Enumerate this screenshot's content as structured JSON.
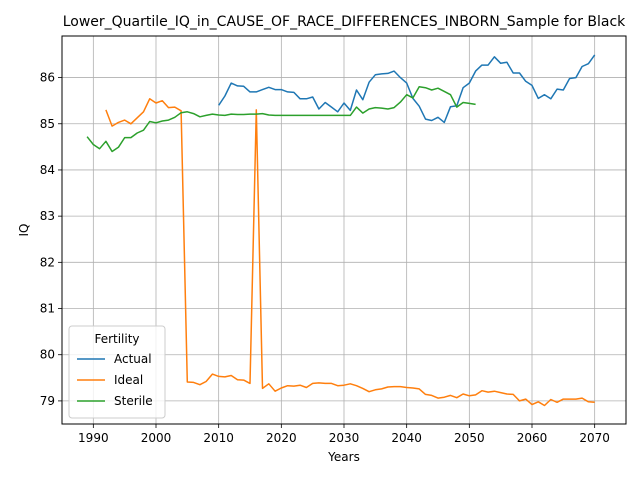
{
  "chart_data": {
    "type": "line",
    "title": "Lower_Quartile_IQ_in_CAUSE_OF_RACE_DIFFERENCES_INBORN_Sample for Black",
    "xlabel": "Years",
    "ylabel": "IQ",
    "xlim": [
      1985,
      2075
    ],
    "ylim": [
      78.5,
      86.9
    ],
    "xticks": [
      1990,
      2000,
      2010,
      2020,
      2030,
      2040,
      2050,
      2060,
      2070
    ],
    "yticks": [
      79,
      80,
      81,
      82,
      83,
      84,
      85,
      86
    ],
    "grid": true,
    "legend": {
      "title": "Fertility",
      "placement": "lower-left"
    },
    "series": [
      {
        "name": "Actual",
        "color": "#1f77b4",
        "x": [
          2010,
          2011,
          2012,
          2013,
          2014,
          2015,
          2016,
          2017,
          2018,
          2019,
          2020,
          2021,
          2022,
          2023,
          2024,
          2025,
          2026,
          2027,
          2028,
          2029,
          2030,
          2031,
          2032,
          2033,
          2034,
          2035,
          2036,
          2037,
          2038,
          2039,
          2040,
          2041,
          2042,
          2043,
          2044,
          2045,
          2046,
          2047,
          2048,
          2049,
          2050,
          2051,
          2052,
          2053,
          2054,
          2055,
          2056,
          2057,
          2058,
          2059,
          2060,
          2061,
          2062,
          2063,
          2064,
          2065,
          2066,
          2067,
          2068,
          2069,
          2070
        ],
        "y": [
          85.4,
          85.6,
          85.88,
          85.82,
          85.81,
          85.69,
          85.69,
          85.74,
          85.79,
          85.74,
          85.74,
          85.69,
          85.68,
          85.54,
          85.54,
          85.58,
          85.32,
          85.46,
          85.36,
          85.26,
          85.45,
          85.29,
          85.73,
          85.52,
          85.9,
          86.06,
          86.08,
          86.09,
          86.14,
          86.0,
          85.88,
          85.55,
          85.38,
          85.1,
          85.07,
          85.14,
          85.03,
          85.37,
          85.39,
          85.78,
          85.88,
          86.14,
          86.27,
          86.27,
          86.45,
          86.31,
          86.33,
          86.1,
          86.1,
          85.92,
          85.83,
          85.55,
          85.63,
          85.54,
          85.75,
          85.73,
          85.98,
          86.0,
          86.24,
          86.3,
          86.49
        ]
      },
      {
        "name": "Ideal",
        "color": "#ff7f0e",
        "x": [
          1992,
          1993,
          1994,
          1995,
          1996,
          1997,
          1998,
          1999,
          2000,
          2001,
          2002,
          2003,
          2004,
          2005,
          2006,
          2007,
          2008,
          2009,
          2010,
          2011,
          2012,
          2013,
          2014,
          2015,
          2016,
          2017,
          2018,
          2019,
          2020,
          2021,
          2022,
          2023,
          2024,
          2025,
          2026,
          2027,
          2028,
          2029,
          2030,
          2031,
          2032,
          2033,
          2034,
          2035,
          2036,
          2037,
          2038,
          2039,
          2040,
          2041,
          2042,
          2043,
          2044,
          2045,
          2046,
          2047,
          2048,
          2049,
          2050,
          2051,
          2052,
          2053,
          2054,
          2055,
          2056,
          2057,
          2058,
          2059,
          2060,
          2061,
          2062,
          2063,
          2064,
          2065,
          2066,
          2067,
          2068,
          2069,
          2070
        ],
        "y": [
          85.3,
          84.95,
          85.03,
          85.08,
          85.0,
          85.13,
          85.26,
          85.54,
          85.45,
          85.5,
          85.35,
          85.36,
          85.28,
          79.41,
          79.4,
          79.35,
          79.42,
          79.58,
          79.53,
          79.52,
          79.55,
          79.46,
          79.45,
          79.38,
          85.3,
          79.27,
          79.37,
          79.21,
          79.28,
          79.33,
          79.32,
          79.34,
          79.29,
          79.38,
          79.39,
          79.38,
          79.38,
          79.33,
          79.34,
          79.37,
          79.33,
          79.27,
          79.2,
          79.24,
          79.26,
          79.3,
          79.31,
          79.31,
          79.29,
          79.28,
          79.26,
          79.14,
          79.12,
          79.06,
          79.08,
          79.12,
          79.07,
          79.15,
          79.11,
          79.13,
          79.22,
          79.19,
          79.21,
          79.18,
          79.15,
          79.14,
          79.0,
          79.04,
          78.92,
          78.98,
          78.9,
          79.03,
          78.97,
          79.04,
          79.04,
          79.04,
          79.06,
          78.98,
          78.97
        ]
      },
      {
        "name": "Sterile",
        "color": "#2ca02c",
        "x": [
          1989,
          1990,
          1991,
          1992,
          1993,
          1994,
          1995,
          1996,
          1997,
          1998,
          1999,
          2000,
          2001,
          2002,
          2003,
          2004,
          2005,
          2006,
          2007,
          2008,
          2009,
          2010,
          2011,
          2012,
          2013,
          2014,
          2015,
          2016,
          2017,
          2018,
          2019,
          2020,
          2021,
          2022,
          2023,
          2024,
          2025,
          2026,
          2027,
          2028,
          2029,
          2030,
          2031,
          2032,
          2033,
          2034,
          2035,
          2036,
          2037,
          2038,
          2039,
          2040,
          2041,
          2042,
          2043,
          2044,
          2045,
          2046,
          2047,
          2048,
          2049,
          2050,
          2051
        ],
        "y": [
          84.72,
          84.55,
          84.46,
          84.62,
          84.4,
          84.49,
          84.7,
          84.7,
          84.8,
          84.86,
          85.05,
          85.02,
          85.06,
          85.08,
          85.14,
          85.24,
          85.26,
          85.22,
          85.15,
          85.18,
          85.21,
          85.19,
          85.18,
          85.21,
          85.2,
          85.2,
          85.21,
          85.21,
          85.22,
          85.19,
          85.18,
          85.18,
          85.18,
          85.18,
          85.18,
          85.18,
          85.18,
          85.18,
          85.18,
          85.18,
          85.18,
          85.18,
          85.18,
          85.36,
          85.23,
          85.32,
          85.35,
          85.34,
          85.32,
          85.35,
          85.47,
          85.63,
          85.56,
          85.8,
          85.78,
          85.73,
          85.77,
          85.7,
          85.63,
          85.36,
          85.46,
          85.44,
          85.42
        ]
      }
    ]
  }
}
